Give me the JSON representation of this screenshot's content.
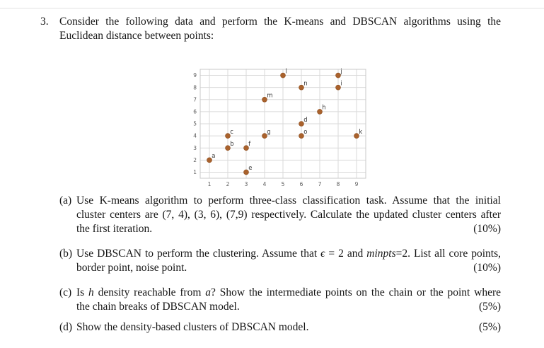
{
  "document": {
    "question": {
      "number": "3.",
      "line1": "Consider the following data and perform the K-means and DBSCAN algorithms using the",
      "line2": "Euclidean distance between points:"
    },
    "parts": {
      "a": {
        "label": "(a)",
        "line1": "Use K-means algorithm to perform three-class classification task. Assume that the initial",
        "line2": "cluster centers are (7, 4), (3, 6), (7,9) respectively. Calculate the updated cluster centers after",
        "line3": "the first iteration.",
        "marks": "(10%)"
      },
      "b": {
        "label": "(b)",
        "line1_s0": "Use DBSCAN to perform the clustering. Assume that ",
        "line1_s1": "ϵ",
        "line1_s2": " = 2 and ",
        "line1_s3": "minpts",
        "line1_s4": "=2. List all core points,",
        "line2": "border point, noise point.",
        "marks": "(10%)"
      },
      "c": {
        "label": "(c)",
        "line1_s0": "Is ",
        "line1_s1": "h",
        "line1_s2": " density reachable from ",
        "line1_s3": "a",
        "line1_s4": "? Show the intermediate points on the chain or the point where",
        "line2": "the chain breaks of DBSCAN model.",
        "marks": "(5%)"
      },
      "d": {
        "label": "(d)",
        "line1": "Show the density-based clusters of DBSCAN model.",
        "marks": "(5%)"
      }
    }
  },
  "chart_data": {
    "type": "scatter",
    "title": "",
    "xlabel": "",
    "ylabel": "",
    "points": [
      {
        "label": "a",
        "x": 1,
        "y": 2
      },
      {
        "label": "b",
        "x": 2,
        "y": 3
      },
      {
        "label": "c",
        "x": 2,
        "y": 4
      },
      {
        "label": "d",
        "x": 6,
        "y": 5
      },
      {
        "label": "e",
        "x": 3,
        "y": 1
      },
      {
        "label": "f",
        "x": 3,
        "y": 3
      },
      {
        "label": "g",
        "x": 4,
        "y": 4
      },
      {
        "label": "h",
        "x": 7,
        "y": 6
      },
      {
        "label": "i",
        "x": 8,
        "y": 8
      },
      {
        "label": "j",
        "x": 8,
        "y": 9
      },
      {
        "label": "k",
        "x": 9,
        "y": 4
      },
      {
        "label": "l",
        "x": 5,
        "y": 9
      },
      {
        "label": "m",
        "x": 4,
        "y": 7
      },
      {
        "label": "n",
        "x": 6,
        "y": 8
      },
      {
        "label": "o",
        "x": 6,
        "y": 4
      }
    ],
    "xticks": [
      1,
      2,
      3,
      4,
      5,
      6,
      7,
      8,
      9
    ],
    "yticks": [
      1,
      2,
      3,
      4,
      5,
      6,
      7,
      8,
      9
    ],
    "xlim": [
      0.5,
      9.5
    ],
    "ylim": [
      0.5,
      9.5
    ],
    "grid": true,
    "legend": false,
    "point_color": "#a9622d",
    "point_edge_color": "#8f4e1f",
    "grid_color": "#dadada",
    "border_color": "#c9c9c9",
    "tick_color": "#595959",
    "label_color": "#3d3d3d"
  }
}
